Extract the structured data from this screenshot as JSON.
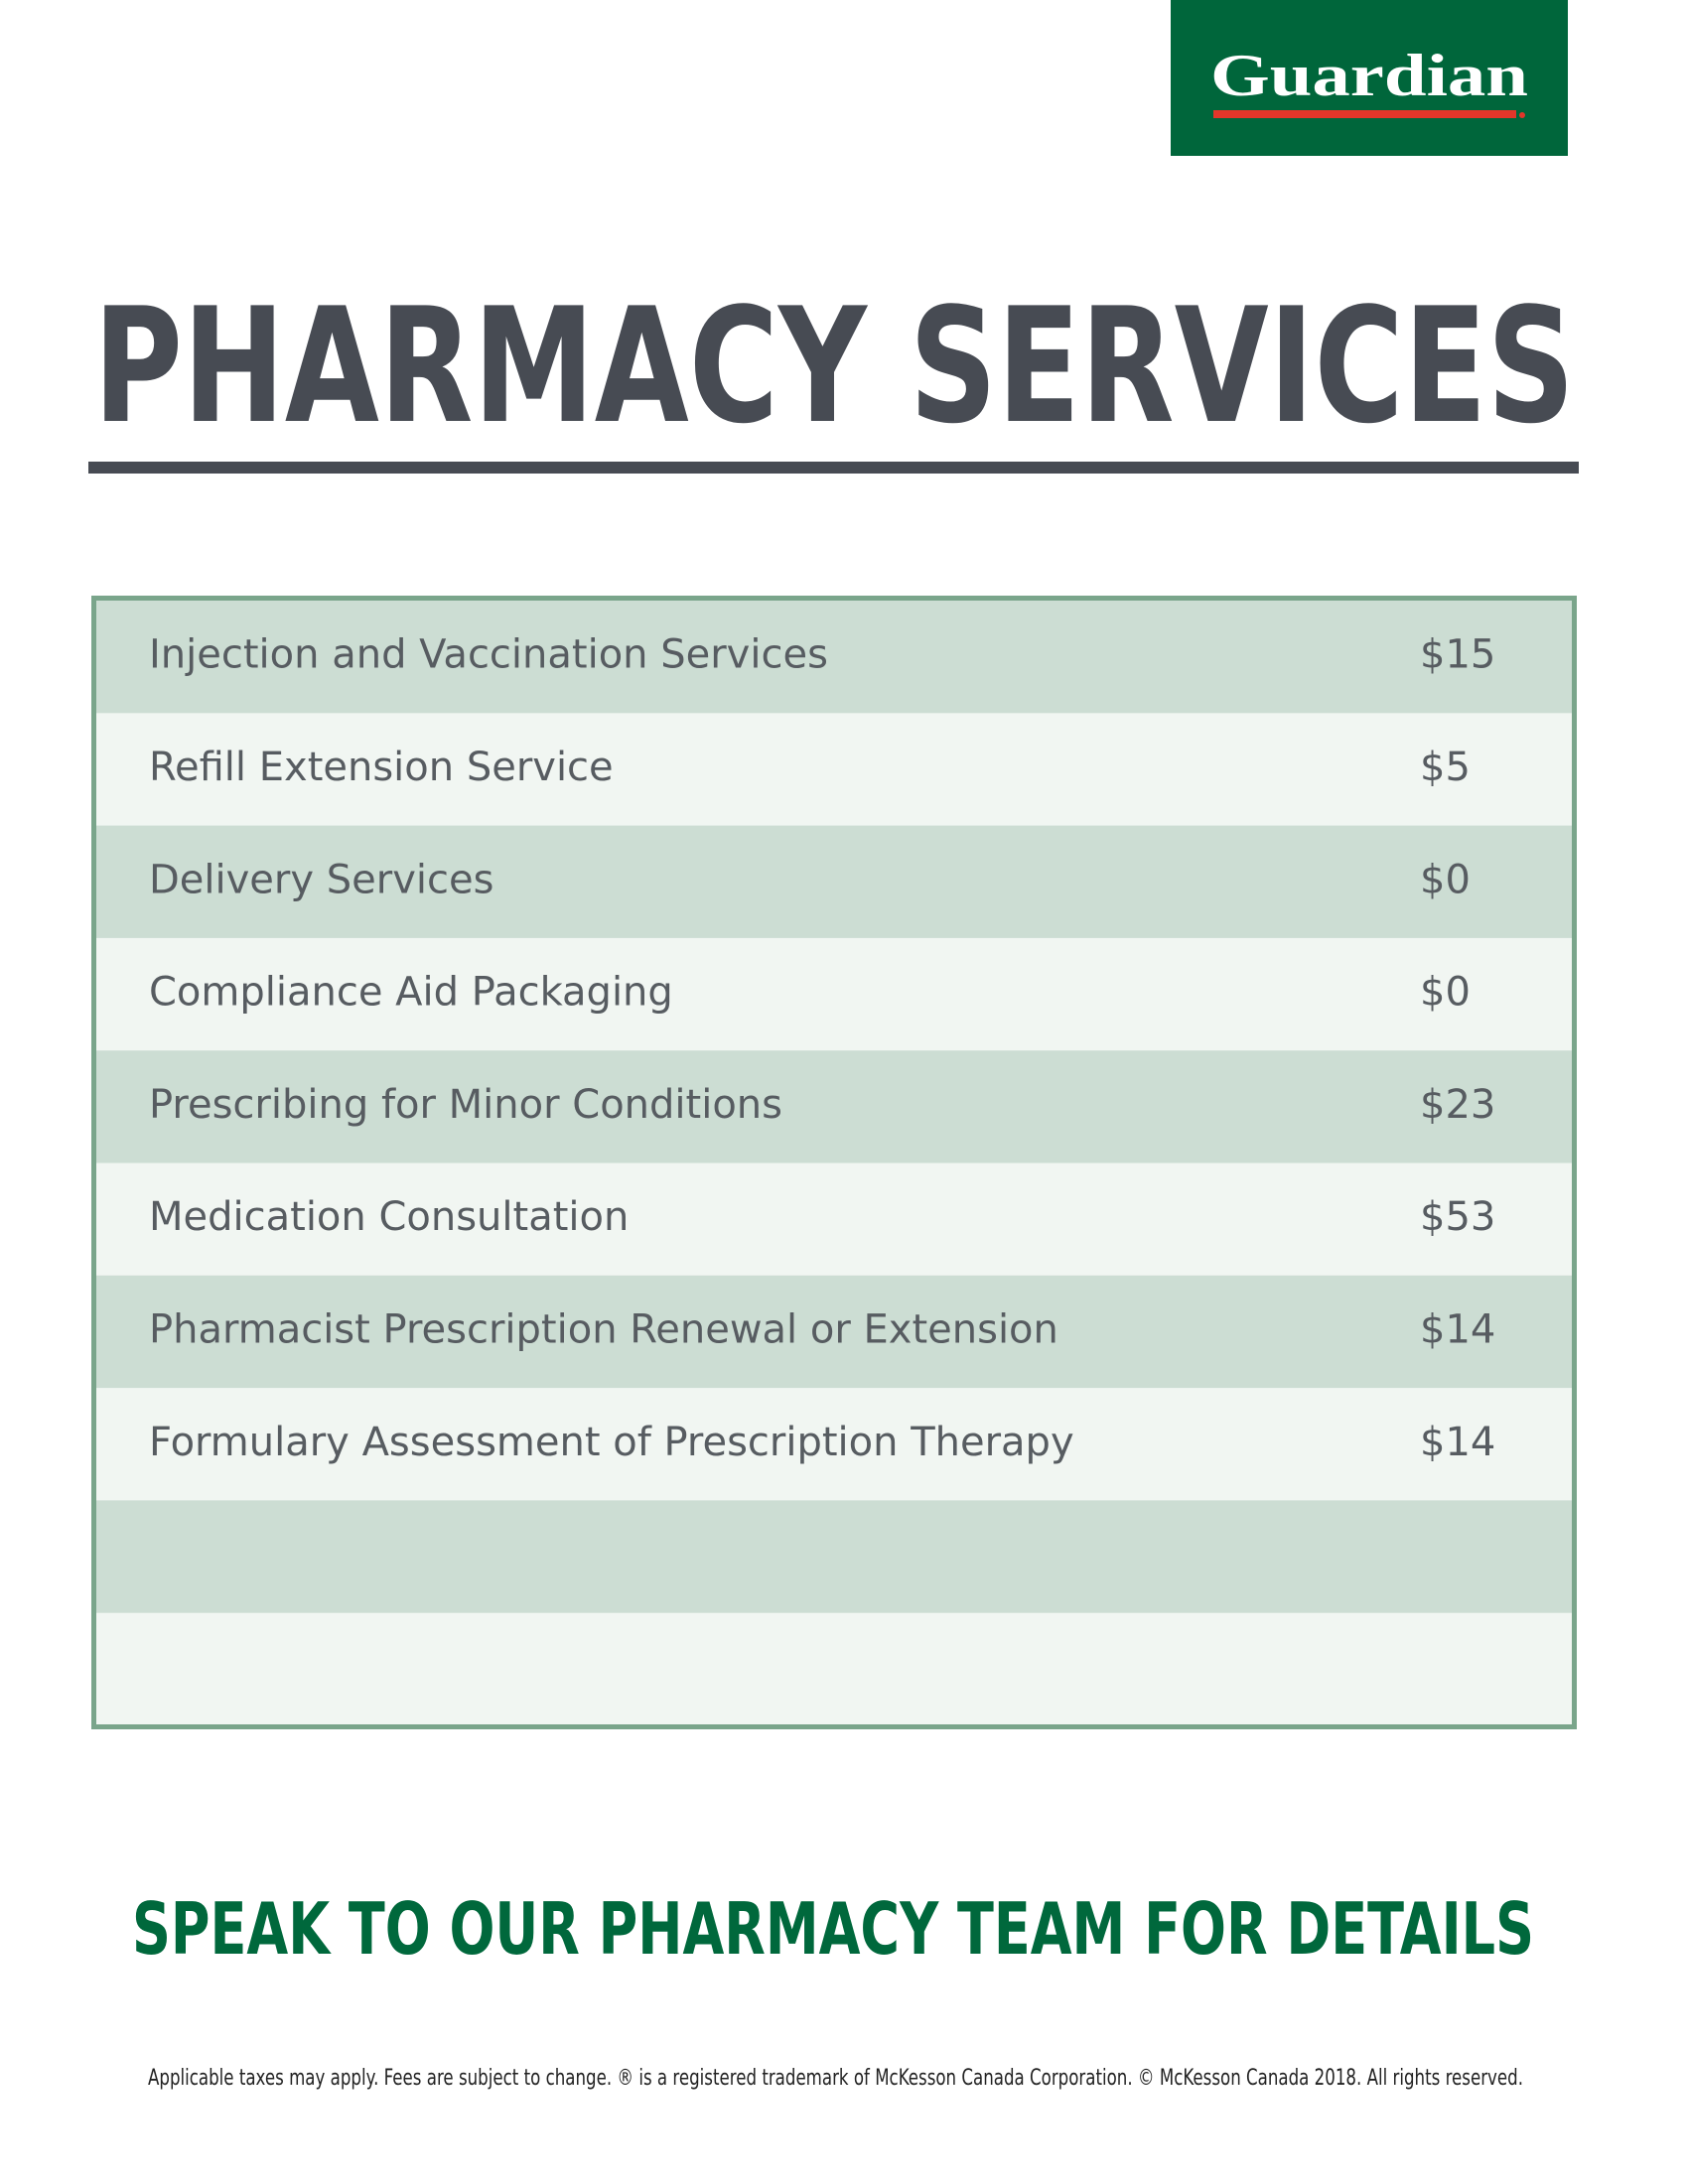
{
  "header": {
    "logo": "Guardian"
  },
  "title": "PHARMACY SERVICES",
  "table": {
    "rows": [
      [
        "Injection and Vaccination Services",
        "$15"
      ],
      [
        "Refill Extension Service",
        "$5"
      ],
      [
        "Delivery Services",
        "$0"
      ],
      [
        "Compliance Aid Packaging",
        "$0"
      ],
      [
        "Prescribing for Minor Conditions",
        "$23"
      ],
      [
        "Medication Consultation",
        "$53"
      ],
      [
        "Pharmacist Prescription Renewal or Extension",
        "$14"
      ],
      [
        "Formulary Assessment of Prescription Therapy",
        "$14"
      ]
    ]
  },
  "call_to_action": "SPEAK TO OUR PHARMACY TEAM FOR DETAILS",
  "footer": "Applicable taxes may apply. Fees are subject to change. ® is a registered trademark of McKesson Canada Corporation. © McKesson Canada 2018. All rights reserved."
}
